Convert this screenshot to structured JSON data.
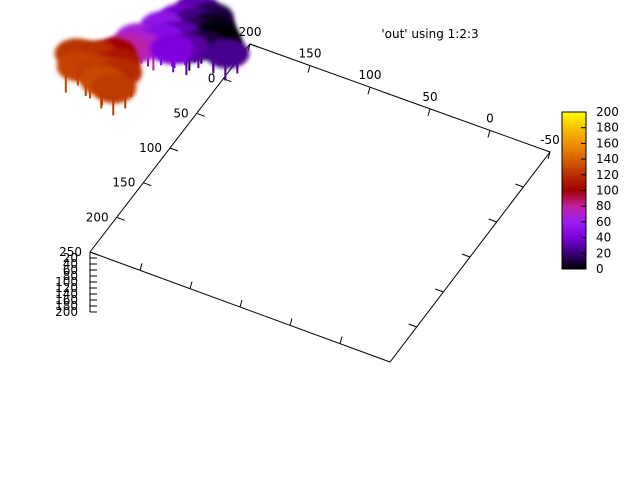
{
  "chart_data": {
    "type": "surface3d",
    "title": "",
    "legend": {
      "label": "'out' using 1:2:3",
      "placement": "top-right"
    },
    "x_axis": {
      "label": "",
      "range": [
        -50,
        250
      ],
      "ticks": [
        "-50",
        "0",
        "50",
        "100",
        "150",
        "200",
        "250"
      ]
    },
    "y_axis": {
      "label": "",
      "range": [
        -50,
        200
      ],
      "ticks": [
        "200",
        "150",
        "100",
        "50",
        "0",
        "-50"
      ]
    },
    "z_axis": {
      "label": "",
      "range": [
        0,
        200
      ],
      "ticks": [
        "20",
        "40",
        "60",
        "80",
        "100",
        "120",
        "140",
        "160",
        "180",
        "200"
      ]
    },
    "colorbox": {
      "range": [
        0,
        200
      ],
      "ticks": [
        "200",
        "180",
        "160",
        "140",
        "120",
        "100",
        "80",
        "60",
        "40",
        "20",
        "0"
      ],
      "palette": [
        "#000000",
        "#3a0078",
        "#7a00d8",
        "#9a20f0",
        "#c020a0",
        "#a00000",
        "#b83000",
        "#d86000",
        "#f09000",
        "#f8c000",
        "#ffff00"
      ]
    },
    "surface_points": [
      {
        "x": 116,
        "y": 158,
        "z": 12
      },
      {
        "x": 126,
        "y": 152,
        "z": 6
      },
      {
        "x": 134,
        "y": 146,
        "z": 2
      },
      {
        "x": 140,
        "y": 140,
        "z": 0
      },
      {
        "x": 128,
        "y": 166,
        "z": 22
      },
      {
        "x": 140,
        "y": 160,
        "z": 14
      },
      {
        "x": 150,
        "y": 150,
        "z": 10
      },
      {
        "x": 112,
        "y": 172,
        "z": 30
      },
      {
        "x": 130,
        "y": 178,
        "z": 38
      },
      {
        "x": 150,
        "y": 170,
        "z": 32
      },
      {
        "x": 160,
        "y": 158,
        "z": 28
      },
      {
        "x": 150,
        "y": 130,
        "z": 24
      },
      {
        "x": 146,
        "y": 186,
        "z": 52
      },
      {
        "x": 160,
        "y": 180,
        "z": 48
      },
      {
        "x": 168,
        "y": 168,
        "z": 44
      },
      {
        "x": 178,
        "y": 190,
        "z": 70
      },
      {
        "x": 170,
        "y": 196,
        "z": 66
      },
      {
        "x": 186,
        "y": 198,
        "z": 78
      },
      {
        "x": 196,
        "y": 204,
        "z": 100
      },
      {
        "x": 206,
        "y": 196,
        "z": 110
      },
      {
        "x": 216,
        "y": 190,
        "z": 118
      },
      {
        "x": 206,
        "y": 214,
        "z": 120
      },
      {
        "x": 222,
        "y": 206,
        "z": 126
      },
      {
        "x": 232,
        "y": 198,
        "z": 130
      },
      {
        "x": 236,
        "y": 186,
        "z": 124
      },
      {
        "x": 226,
        "y": 220,
        "z": 128
      },
      {
        "x": 212,
        "y": 228,
        "z": 122
      }
    ]
  }
}
